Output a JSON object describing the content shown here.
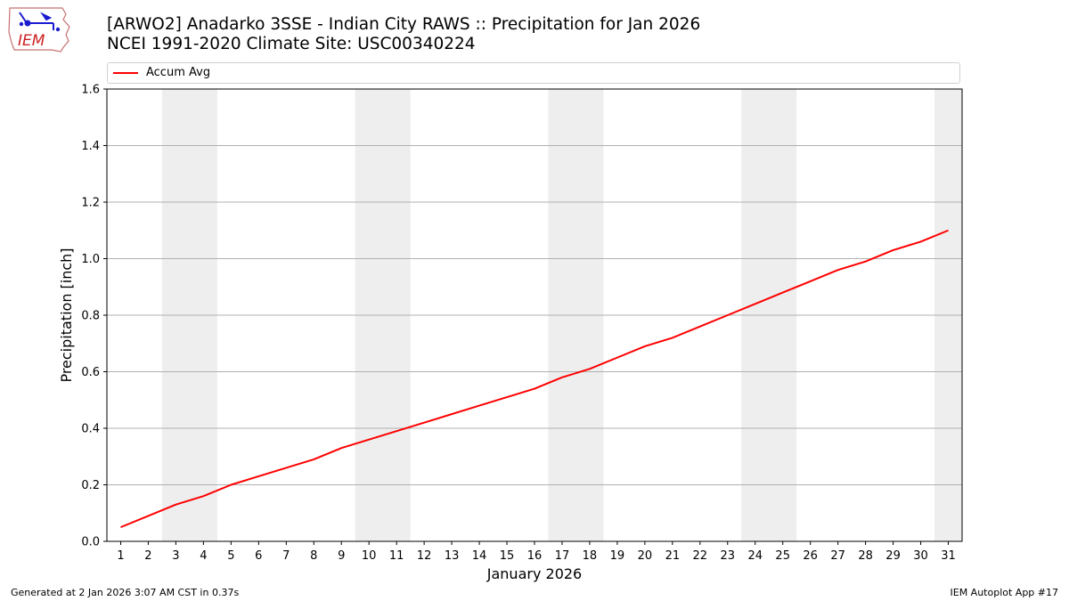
{
  "header": {
    "title_line1": "[ARWO2] Anadarko 3SSE - Indian City RAWS :: Precipitation for Jan 2026",
    "title_line2": "NCEI 1991-2020 Climate Site: USC00340224",
    "logo_text": "IEM"
  },
  "footer": {
    "generated": "Generated at 2 Jan 2026 3:07 AM CST in 0.37s",
    "app": "IEM Autoplot App #17"
  },
  "colors": {
    "series": "#ff0000",
    "weekend_shade": "#eeeeee",
    "grid": "#b0b0b0"
  },
  "chart_data": {
    "type": "line",
    "xlabel": "January 2026",
    "ylabel": "Precipitation [inch]",
    "xlim": [
      0.5,
      31.5
    ],
    "ylim": [
      0,
      1.6
    ],
    "x_ticks": [
      1,
      2,
      3,
      4,
      5,
      6,
      7,
      8,
      9,
      10,
      11,
      12,
      13,
      14,
      15,
      16,
      17,
      18,
      19,
      20,
      21,
      22,
      23,
      24,
      25,
      26,
      27,
      28,
      29,
      30,
      31
    ],
    "y_ticks": [
      0.0,
      0.2,
      0.4,
      0.6,
      0.8,
      1.0,
      1.2,
      1.4,
      1.6
    ],
    "y_tick_labels": [
      "0.0",
      "0.2",
      "0.4",
      "0.6",
      "0.8",
      "1.0",
      "1.2",
      "1.4",
      "1.6"
    ],
    "grid": "horizontal",
    "legend_position": "top",
    "shaded_days": [
      [
        3,
        4
      ],
      [
        10,
        11
      ],
      [
        17,
        18
      ],
      [
        24,
        25
      ],
      [
        31,
        31
      ]
    ],
    "series": [
      {
        "name": "Accum Avg",
        "x": [
          1,
          2,
          3,
          4,
          5,
          6,
          7,
          8,
          9,
          10,
          11,
          12,
          13,
          14,
          15,
          16,
          17,
          18,
          19,
          20,
          21,
          22,
          23,
          24,
          25,
          26,
          27,
          28,
          29,
          30,
          31
        ],
        "values": [
          0.05,
          0.09,
          0.13,
          0.16,
          0.2,
          0.23,
          0.26,
          0.29,
          0.33,
          0.36,
          0.39,
          0.42,
          0.45,
          0.48,
          0.51,
          0.54,
          0.58,
          0.61,
          0.65,
          0.69,
          0.72,
          0.76,
          0.8,
          0.84,
          0.88,
          0.92,
          0.96,
          0.99,
          1.03,
          1.06,
          1.1
        ]
      }
    ]
  }
}
